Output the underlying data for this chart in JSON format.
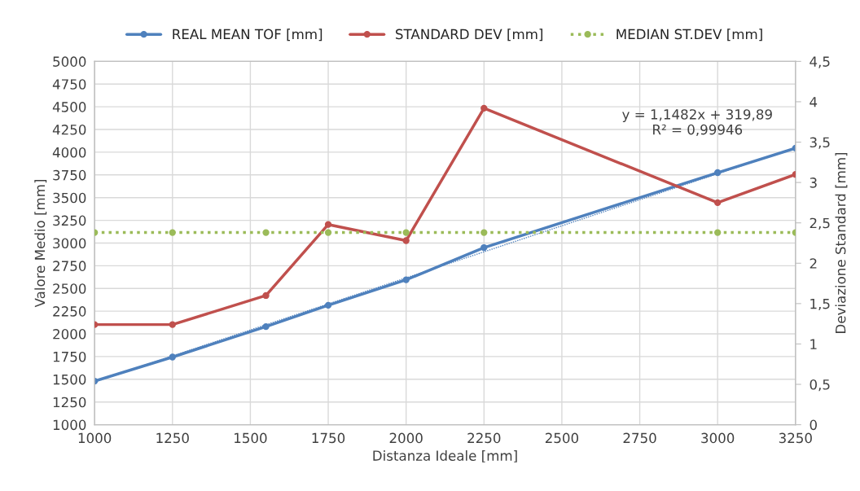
{
  "chart_data": {
    "type": "line",
    "xlabel": "Distanza Ideale [mm]",
    "ylabel": "Valore Medio [mm]",
    "y2label": "Deviazione Standard [mm]",
    "xlim": [
      1000,
      3250
    ],
    "xticks": [
      1000,
      1250,
      1500,
      1750,
      2000,
      2250,
      2500,
      2750,
      3000,
      3250
    ],
    "ylim": [
      1000,
      5000
    ],
    "yticks": [
      1000,
      1250,
      1500,
      1750,
      2000,
      2250,
      2500,
      2750,
      3000,
      3250,
      3500,
      3750,
      4000,
      4250,
      4500,
      4750,
      5000
    ],
    "y2lim": [
      0,
      4.5
    ],
    "y2ticks": [
      0,
      {
        "value": 0.5,
        "label": "0,5"
      },
      1,
      {
        "value": 1.5,
        "label": "1,5"
      },
      2,
      {
        "value": 2.5,
        "label": "2,5"
      },
      3,
      {
        "value": 3.5,
        "label": "3,5"
      },
      4,
      {
        "value": 4.5,
        "label": "4,5"
      }
    ],
    "x": [
      1000,
      1250,
      1550,
      1750,
      2000,
      2250,
      3000,
      3250
    ],
    "grid": true,
    "legend": "top",
    "marker": "circle",
    "series": [
      {
        "name": "REAL MEAN TOF [mm]",
        "color": "#4f81bd",
        "values": [
          1480,
          1745,
          2080,
          2315,
          2595,
          2950,
          3775,
          4045
        ]
      },
      {
        "name": "STANDARD DEV [mm]",
        "color": "#c0504d",
        "axis": "y2",
        "values": [
          1.24,
          1.24,
          1.6,
          2.48,
          2.28,
          3.92,
          2.75,
          3.1
        ]
      },
      {
        "name": "MEDIAN ST.DEV [mm]",
        "color": "#9bbb59",
        "axis": "y2",
        "line_style": "dotted",
        "values": [
          2.38,
          2.38,
          2.38,
          2.38,
          2.38,
          2.38,
          2.38,
          2.38
        ]
      },
      {
        "type": "line",
        "color": "#4f81bd",
        "line_style": "dotted",
        "marker": "none",
        "x": [
          1000,
          3250
        ],
        "values": [
          1470,
          4050
        ]
      }
    ],
    "annotations": [
      "y = 1,1482x + 319,89\nR² = 0,99946"
    ]
  }
}
